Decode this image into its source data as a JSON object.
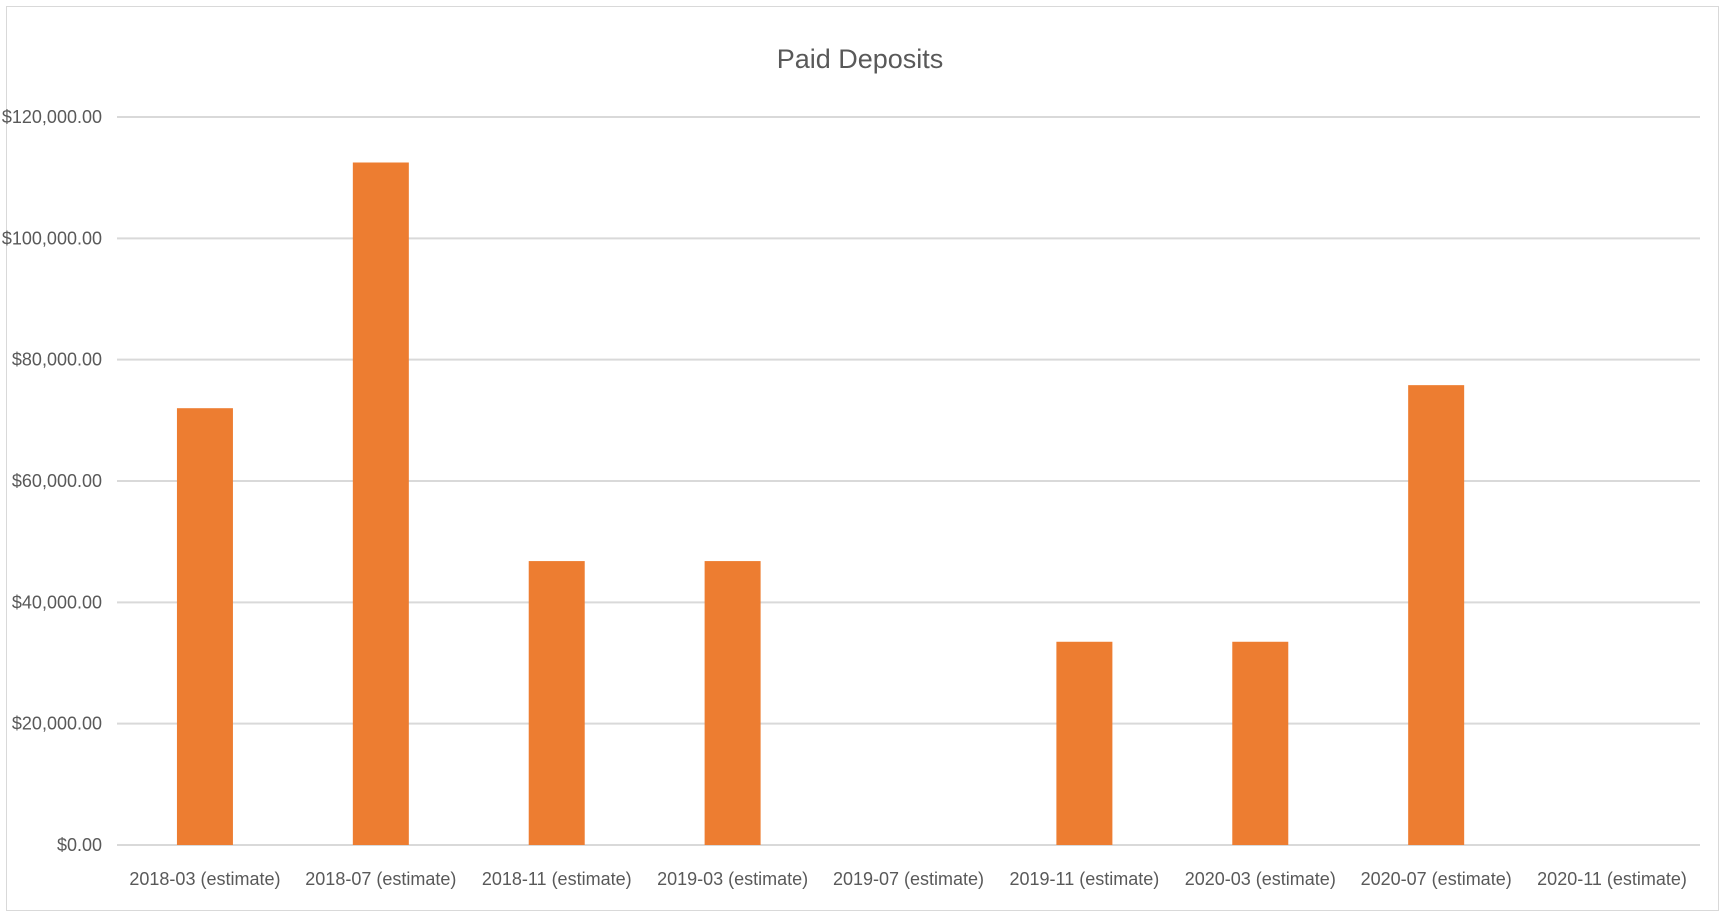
{
  "chart_data": {
    "type": "bar",
    "title": "Paid Deposits",
    "xlabel": "",
    "ylabel": "",
    "categories": [
      "2018-03 (estimate)",
      "2018-07 (estimate)",
      "2018-11 (estimate)",
      "2019-03 (estimate)",
      "2019-07 (estimate)",
      "2019-11 (estimate)",
      "2020-03 (estimate)",
      "2020-07 (estimate)",
      "2020-11 (estimate)"
    ],
    "values": [
      72000,
      112500,
      46800,
      46800,
      0,
      33500,
      33500,
      75800,
      0
    ],
    "ylim": [
      0,
      120000
    ],
    "yticks": [
      0,
      20000,
      40000,
      60000,
      80000,
      100000,
      120000
    ],
    "ytick_labels": [
      "$0.00",
      "$20,000.00",
      "$40,000.00",
      "$60,000.00",
      "$80,000.00",
      "$100,000.00",
      "$120,000.00"
    ],
    "grid": true,
    "legend": "none",
    "bar_color": "#ed7d31"
  }
}
